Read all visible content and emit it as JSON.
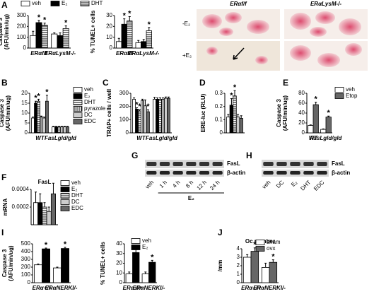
{
  "chart_data": [
    {
      "type": "bar",
      "panel": "A",
      "ylabel": [
        "Caspase 3",
        "(AFU/min/ug)"
      ],
      "categories": [
        "ERαf/f",
        "ERαLysM-/-"
      ],
      "ylim": [
        0,
        300
      ],
      "yticks": [
        0,
        100,
        200,
        300
      ],
      "legend": "top",
      "series": [
        {
          "name": "veh",
          "color": "#ffffff",
          "values": [
            115,
            130
          ],
          "errors": [
            40,
            10
          ],
          "annotations": [
            null,
            null
          ]
        },
        {
          "name": "E₂",
          "color": "#000000",
          "values": [
            235,
            115
          ],
          "errors": [
            20,
            25
          ],
          "annotations": [
            "*",
            null
          ]
        },
        {
          "name": "DHT",
          "color": "#000000",
          "pattern": "horizontal-lines",
          "values": [
            210,
            180
          ],
          "errors": [
            20,
            25
          ],
          "annotations": [
            "*",
            "*"
          ]
        }
      ]
    },
    {
      "type": "bar",
      "ylabel": [
        "% TUNEL+ cells"
      ],
      "categories": [
        "ERαf/f",
        "ERαLysM-/-"
      ],
      "ylim": [
        0,
        30
      ],
      "yticks": [
        0,
        10,
        20,
        30
      ],
      "series": [
        {
          "color": "#ffffff",
          "values": [
            6,
            5
          ],
          "errors": [
            3,
            2
          ],
          "annotations": [
            null,
            null
          ]
        },
        {
          "color": "#000000",
          "values": [
            22,
            6
          ],
          "errors": [
            5,
            2
          ],
          "annotations": [
            "*",
            null
          ]
        },
        {
          "color": "#000000",
          "pattern": "horizontal-lines",
          "values": [
            25,
            16
          ],
          "errors": [
            4,
            3
          ],
          "annotations": [
            "*",
            "*"
          ]
        }
      ]
    },
    {
      "type": "bar",
      "panel": "B",
      "ylabel": [
        "Caspase 3",
        "(AFU/min/ug)"
      ],
      "categories": [
        "WT",
        "FasLgld/gld"
      ],
      "ylim": [
        0,
        20
      ],
      "yticks": [
        0,
        5,
        10,
        15,
        20
      ],
      "legend": "right",
      "series": [
        {
          "name": "veh",
          "color": "#ffffff",
          "values": [
            7.5,
            3
          ],
          "errors": [
            0.5,
            0.3
          ],
          "annotations": [
            null,
            null
          ]
        },
        {
          "name": "E₂",
          "color": "#000000",
          "values": [
            15,
            3
          ],
          "errors": [
            1,
            0.3
          ],
          "annotations": [
            "*",
            null
          ]
        },
        {
          "name": "DHT",
          "color": "#000000",
          "pattern": "horizontal-lines",
          "values": [
            16,
            3
          ],
          "errors": [
            1,
            0.3
          ],
          "annotations": [
            "*",
            null
          ]
        },
        {
          "name": "pyrazole",
          "color": "#000000",
          "pattern": "vertical-lines",
          "values": [
            8,
            3
          ],
          "errors": [
            0.5,
            0.3
          ],
          "annotations": [
            null,
            null
          ]
        },
        {
          "name": "DC",
          "color": "#cccccc",
          "values": [
            7.5,
            3
          ],
          "errors": [
            0.5,
            0.3
          ],
          "annotations": [
            null,
            null
          ]
        },
        {
          "name": "EDC",
          "color": "#666666",
          "values": [
            16,
            3
          ],
          "errors": [
            3,
            0.3
          ],
          "annotations": [
            "*",
            null
          ]
        }
      ]
    },
    {
      "type": "bar",
      "panel": "C",
      "ylabel": [
        "TRAP+ cells / well"
      ],
      "categories": [
        "WT",
        "FasLgld/gld"
      ],
      "ylim": [
        0,
        300
      ],
      "yticks": [
        0,
        100,
        200,
        300
      ],
      "series": [
        {
          "color": "#ffffff",
          "values": [
            255,
            255
          ],
          "errors": [
            10,
            15
          ],
          "annotations": [
            null,
            null
          ]
        },
        {
          "color": "#000000",
          "values": [
            180,
            255
          ],
          "errors": [
            10,
            10
          ],
          "annotations": [
            "*",
            null
          ]
        },
        {
          "color": "#000000",
          "pattern": "horizontal-lines",
          "values": [
            165,
            255
          ],
          "errors": [
            10,
            10
          ],
          "annotations": [
            "*",
            null
          ]
        },
        {
          "color": "#000000",
          "pattern": "vertical-lines",
          "values": [
            245,
            255
          ],
          "errors": [
            10,
            10
          ],
          "annotations": [
            null,
            null
          ]
        },
        {
          "color": "#cccccc",
          "values": [
            205,
            262
          ],
          "errors": [
            45,
            10
          ],
          "annotations": [
            null,
            null
          ]
        },
        {
          "color": "#666666",
          "values": [
            160,
            262
          ],
          "errors": [
            15,
            10
          ],
          "annotations": [
            "*",
            null
          ]
        }
      ]
    },
    {
      "type": "bar",
      "panel": "D",
      "ylabel": [
        "ERE-luc (RLU)"
      ],
      "categories": [
        null
      ],
      "ylim": [
        0,
        0.3
      ],
      "yticks": [
        0,
        0.1,
        0.2,
        0.3
      ],
      "series": [
        {
          "color": "#ffffff",
          "values": [
            0.12
          ],
          "errors": [
            0.02
          ],
          "annotations": [
            null
          ]
        },
        {
          "color": "#000000",
          "values": [
            0.21
          ],
          "errors": [
            0.05
          ],
          "annotations": [
            "*"
          ]
        },
        {
          "color": "#000000",
          "pattern": "horizontal-lines",
          "values": [
            0.28
          ],
          "errors": [
            0.04
          ],
          "annotations": [
            "*"
          ]
        },
        {
          "color": "#cccccc",
          "values": [
            0.12
          ],
          "errors": [
            0.02
          ],
          "annotations": [
            null
          ]
        },
        {
          "color": "#666666",
          "values": [
            0.11
          ],
          "errors": [
            0.02
          ],
          "annotations": [
            null
          ]
        }
      ]
    },
    {
      "type": "bar",
      "panel": "E",
      "ylabel": [
        "Caspase 3",
        "(AFU/min/ug)"
      ],
      "categories": [
        "WT",
        "FasLgld/gld"
      ],
      "ylim": [
        0,
        80
      ],
      "yticks": [
        0,
        20,
        40,
        60,
        80
      ],
      "legend": "right",
      "series": [
        {
          "name": "veh",
          "color": "#ffffff",
          "values": [
            15,
            7
          ],
          "errors": [
            1,
            1
          ],
          "annotations": [
            null,
            null
          ]
        },
        {
          "name": "Etop",
          "color": "#666666",
          "values": [
            57,
            32
          ],
          "errors": [
            5,
            2
          ],
          "annotations": [
            "*",
            "*"
          ]
        }
      ]
    },
    {
      "type": "bar",
      "panel": "F",
      "title": "FasL",
      "ylabel": [
        "mRNA"
      ],
      "categories": [
        null
      ],
      "ylim": [
        0,
        0.0004
      ],
      "yticks": [
        0.0002,
        0.0004
      ],
      "legend": "right",
      "series": [
        {
          "name": "veh",
          "color": "#ffffff",
          "values": [
            0.00025
          ],
          "errors": [
            0.00012
          ],
          "annotations": [
            null
          ]
        },
        {
          "name": "E₂",
          "color": "#000000",
          "values": [
            0.00025
          ],
          "errors": [
            0.0001
          ],
          "annotations": [
            null
          ]
        },
        {
          "name": "DHT",
          "color": "#000000",
          "pattern": "horizontal-lines",
          "values": [
            0.0002
          ],
          "errors": [
            5e-05
          ],
          "annotations": [
            null
          ]
        },
        {
          "name": "DC",
          "color": "#cccccc",
          "values": [
            0.00015
          ],
          "errors": [
            5e-05
          ],
          "annotations": [
            null
          ]
        },
        {
          "name": "EDC",
          "color": "#666666",
          "values": [
            0.00035
          ],
          "errors": [
            0.00012
          ],
          "annotations": [
            null
          ]
        }
      ]
    },
    {
      "type": "bar",
      "panel": "I",
      "ylabel": [
        "Caspase 3",
        "(AFU/min/ug)"
      ],
      "categories": [
        "ERα+/+",
        "ERαNERKI/-"
      ],
      "ylim": [
        0,
        500
      ],
      "yticks": [
        0,
        100,
        200,
        300,
        400,
        500
      ],
      "series": [
        {
          "color": "#ffffff",
          "values": [
            230,
            190
          ],
          "errors": [
            10,
            10
          ],
          "annotations": [
            null,
            null
          ]
        },
        {
          "color": "#000000",
          "values": [
            435,
            440
          ],
          "errors": [
            10,
            15
          ],
          "annotations": [
            "*",
            "*"
          ]
        }
      ]
    },
    {
      "type": "bar",
      "ylabel": [
        "% TUNEL+ cells"
      ],
      "categories": [
        "ERα+/+",
        "ERαNERKI/-"
      ],
      "ylim": [
        0,
        40
      ],
      "yticks": [
        0,
        10,
        20,
        30,
        40
      ],
      "legend": "top",
      "series": [
        {
          "name": "veh",
          "color": "#ffffff",
          "values": [
            9,
            9
          ],
          "errors": [
            2,
            2
          ],
          "annotations": [
            null,
            null
          ]
        },
        {
          "name": "E₂",
          "color": "#000000",
          "values": [
            31,
            21
          ],
          "errors": [
            7,
            2
          ],
          "annotations": [
            "*",
            "*"
          ]
        }
      ]
    },
    {
      "type": "bar",
      "panel": "J",
      "title": "Oc number",
      "ylabel": [
        "/mm"
      ],
      "categories": [
        "ERα+/+",
        "ERαNERKI/-"
      ],
      "ylim": [
        0,
        4
      ],
      "yticks": [
        0,
        1,
        2,
        3,
        4
      ],
      "legend": "top",
      "series": [
        {
          "name": "sham",
          "color": "#ffffff",
          "values": [
            3.0,
            1.8
          ],
          "errors": [
            0.3,
            0.5
          ],
          "annotations": [
            null,
            null
          ]
        },
        {
          "name": "ovx",
          "color": "#666666",
          "values": [
            3.7,
            2.4
          ],
          "errors": [
            0.4,
            0.3
          ],
          "annotations": [
            "*",
            "*"
          ]
        }
      ]
    }
  ],
  "micrographs": {
    "columns": [
      "ERαf/f",
      "ERαLysM-/-"
    ],
    "rows": [
      "-E₂",
      "+E₂"
    ]
  },
  "blots": [
    {
      "panel": "G",
      "bands": [
        "FasL",
        "β-actin"
      ],
      "lanes": [
        "veh",
        "1 h",
        "4 h",
        "8 h",
        "12 h",
        "24 h"
      ],
      "group": "E₂"
    },
    {
      "panel": "H",
      "bands": [
        "FasL",
        "β-actin"
      ],
      "lanes": [
        "veh",
        "DC",
        "E₂",
        "DHT",
        "EDC"
      ]
    }
  ]
}
